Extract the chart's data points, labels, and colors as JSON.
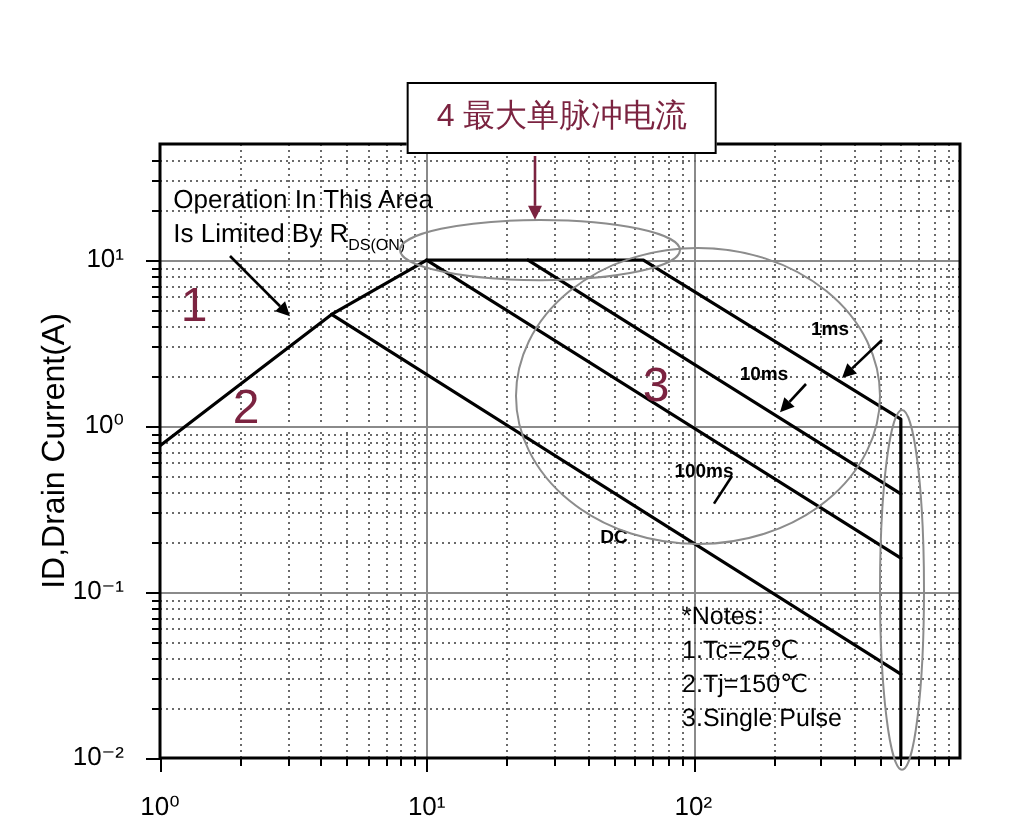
{
  "chart_data": {
    "type": "line",
    "ylabel": "ID,Drain Current(A)",
    "series": [
      {
        "name": "1ms",
        "color": "#000000",
        "x": [
          1,
          4.4,
          10,
          65,
          600,
          600
        ],
        "values": [
          0.76,
          4.7,
          10,
          10,
          1.1,
          0.01
        ]
      },
      {
        "name": "10ms",
        "color": "#000000",
        "x": [
          24,
          600
        ],
        "values": [
          10,
          0.39
        ]
      },
      {
        "name": "100ms",
        "color": "#000000",
        "x": [
          10,
          600
        ],
        "values": [
          10,
          0.16
        ]
      },
      {
        "name": "DC",
        "color": "#000000",
        "x": [
          4.4,
          600
        ],
        "values": [
          4.7,
          0.032
        ]
      }
    ],
    "xlim": [
      1,
      1000
    ],
    "ylim": [
      0.01,
      50
    ],
    "xticks": [
      {
        "value": 1,
        "label": "10⁰"
      },
      {
        "value": 2,
        "label": null
      },
      {
        "value": 3,
        "label": null
      },
      {
        "value": 4,
        "label": null
      },
      {
        "value": 5,
        "label": null
      },
      {
        "value": 6,
        "label": null
      },
      {
        "value": 7,
        "label": null
      },
      {
        "value": 8,
        "label": null
      },
      {
        "value": 9,
        "label": null
      },
      {
        "value": 10,
        "label": "10¹"
      },
      {
        "value": 20,
        "label": null
      },
      {
        "value": 30,
        "label": null
      },
      {
        "value": 40,
        "label": null
      },
      {
        "value": 50,
        "label": null
      },
      {
        "value": 60,
        "label": null
      },
      {
        "value": 70,
        "label": null
      },
      {
        "value": 80,
        "label": null
      },
      {
        "value": 90,
        "label": null
      },
      {
        "value": 100,
        "label": "10²"
      },
      {
        "value": 200,
        "label": null
      },
      {
        "value": 300,
        "label": null
      },
      {
        "value": 400,
        "label": null
      },
      {
        "value": 500,
        "label": null
      },
      {
        "value": 600,
        "label": null
      },
      {
        "value": 700,
        "label": null
      },
      {
        "value": 800,
        "label": null
      },
      {
        "value": 900,
        "label": null
      }
    ],
    "yticks": [
      {
        "value": 0.01,
        "label": "10⁻²"
      },
      {
        "value": 0.02,
        "label": null
      },
      {
        "value": 0.03,
        "label": null
      },
      {
        "value": 0.04,
        "label": null
      },
      {
        "value": 0.05,
        "label": null
      },
      {
        "value": 0.06,
        "label": null
      },
      {
        "value": 0.07,
        "label": null
      },
      {
        "value": 0.08,
        "label": null
      },
      {
        "value": 0.09,
        "label": null
      },
      {
        "value": 0.1,
        "label": "10⁻¹"
      },
      {
        "value": 0.2,
        "label": null
      },
      {
        "value": 0.3,
        "label": null
      },
      {
        "value": 0.4,
        "label": null
      },
      {
        "value": 0.5,
        "label": null
      },
      {
        "value": 0.6,
        "label": null
      },
      {
        "value": 0.7,
        "label": null
      },
      {
        "value": 0.8,
        "label": null
      },
      {
        "value": 0.9,
        "label": null
      },
      {
        "value": 1,
        "label": "10⁰"
      },
      {
        "value": 2,
        "label": null
      },
      {
        "value": 3,
        "label": null
      },
      {
        "value": 4,
        "label": null
      },
      {
        "value": 5,
        "label": null
      },
      {
        "value": 6,
        "label": null
      },
      {
        "value": 7,
        "label": null
      },
      {
        "value": 8,
        "label": null
      },
      {
        "value": 9,
        "label": null
      },
      {
        "value": 10,
        "label": "10¹"
      },
      {
        "value": 20,
        "label": null
      },
      {
        "value": 30,
        "label": null
      },
      {
        "value": 40,
        "label": null
      }
    ],
    "log": "xy",
    "grid": true,
    "marker": "none",
    "line_style": "solid",
    "annotations": [
      "Operation In This Area\nIs Limited By R$_{DS(ON)}$",
      "1",
      "2",
      "3",
      "4 最大单脉冲电流",
      "*Notes:\n1.Tc=25℃\n2.Tj=150℃\n3.Single Pulse"
    ]
  }
}
